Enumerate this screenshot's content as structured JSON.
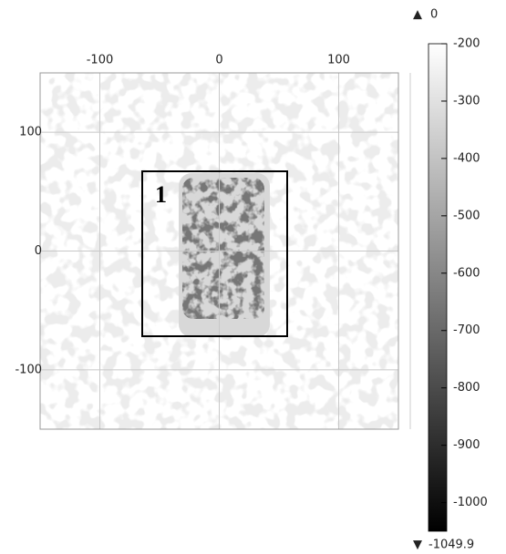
{
  "chart_data": {
    "type": "heatmap",
    "xlim": [
      -150,
      150
    ],
    "ylim": [
      -150,
      150
    ],
    "xticks": [
      -100,
      0,
      100
    ],
    "yticks": [
      100,
      0,
      -100
    ],
    "grid": true,
    "annotations": [
      "1"
    ],
    "colorbar": {
      "lim": [
        -1049.9,
        -200
      ],
      "ticks": [
        -200,
        -300,
        -400,
        -500,
        -600,
        -700,
        -800,
        -900,
        -1000
      ],
      "max": 0,
      "min": -1049.9
    }
  }
}
